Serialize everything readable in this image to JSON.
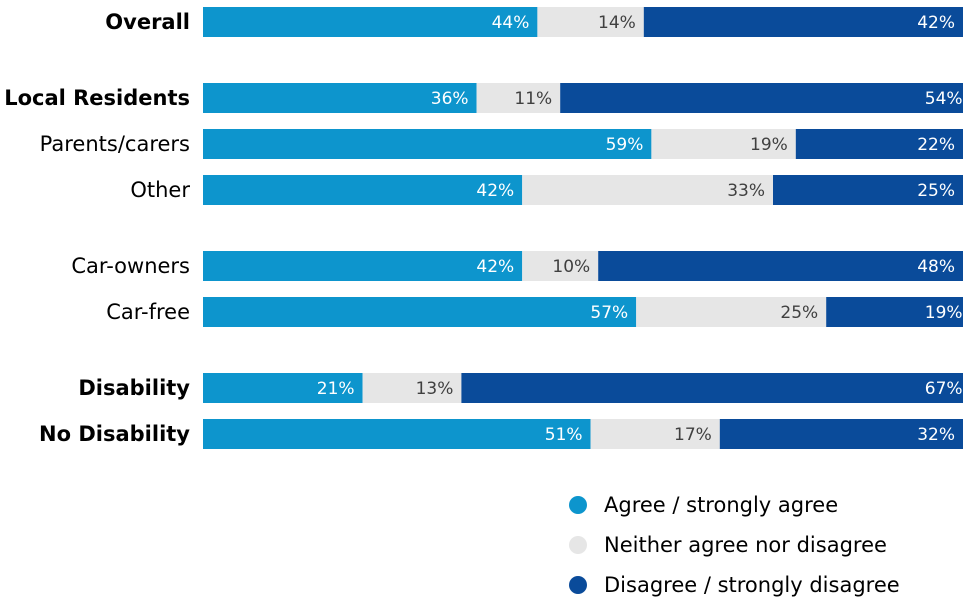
{
  "chart_data": {
    "type": "bar",
    "orientation": "horizontal",
    "stacked": true,
    "percent": true,
    "categories": [
      "Overall",
      "Local Residents",
      "Parents/carers",
      "Other",
      "Car-owners",
      "Car-free",
      "Disability",
      "No Disability"
    ],
    "groups": [
      [
        0
      ],
      [
        1,
        2,
        3
      ],
      [
        4,
        5
      ],
      [
        6,
        7
      ]
    ],
    "series": [
      {
        "name": "Agree / strongly agree",
        "color": "#0D95CD",
        "label_color": "#ffffff",
        "values": [
          44,
          36,
          59,
          42,
          42,
          57,
          21,
          51
        ],
        "labels": [
          "44%",
          "36%",
          "59%",
          "42%",
          "42%",
          "57%",
          "21%",
          "51%"
        ]
      },
      {
        "name": "Neither agree nor disagree",
        "color": "#E6E6E6",
        "label_color": "#404040",
        "values": [
          14,
          11,
          19,
          33,
          10,
          25,
          13,
          17
        ],
        "labels": [
          "14%",
          "11%",
          "19%",
          "33%",
          "10%",
          "25%",
          "13%",
          "17%"
        ]
      },
      {
        "name": "Disagree / strongly disagree",
        "color": "#0A4B9A",
        "label_color": "#ffffff",
        "values": [
          42,
          54,
          22,
          25,
          48,
          19,
          67,
          32
        ],
        "labels": [
          "42%",
          "54%",
          "22%",
          "25%",
          "48%",
          "19%",
          "67%",
          "32%"
        ]
      }
    ],
    "xlim": [
      0,
      100
    ],
    "grid": false,
    "legend_position": "bottom-right"
  }
}
